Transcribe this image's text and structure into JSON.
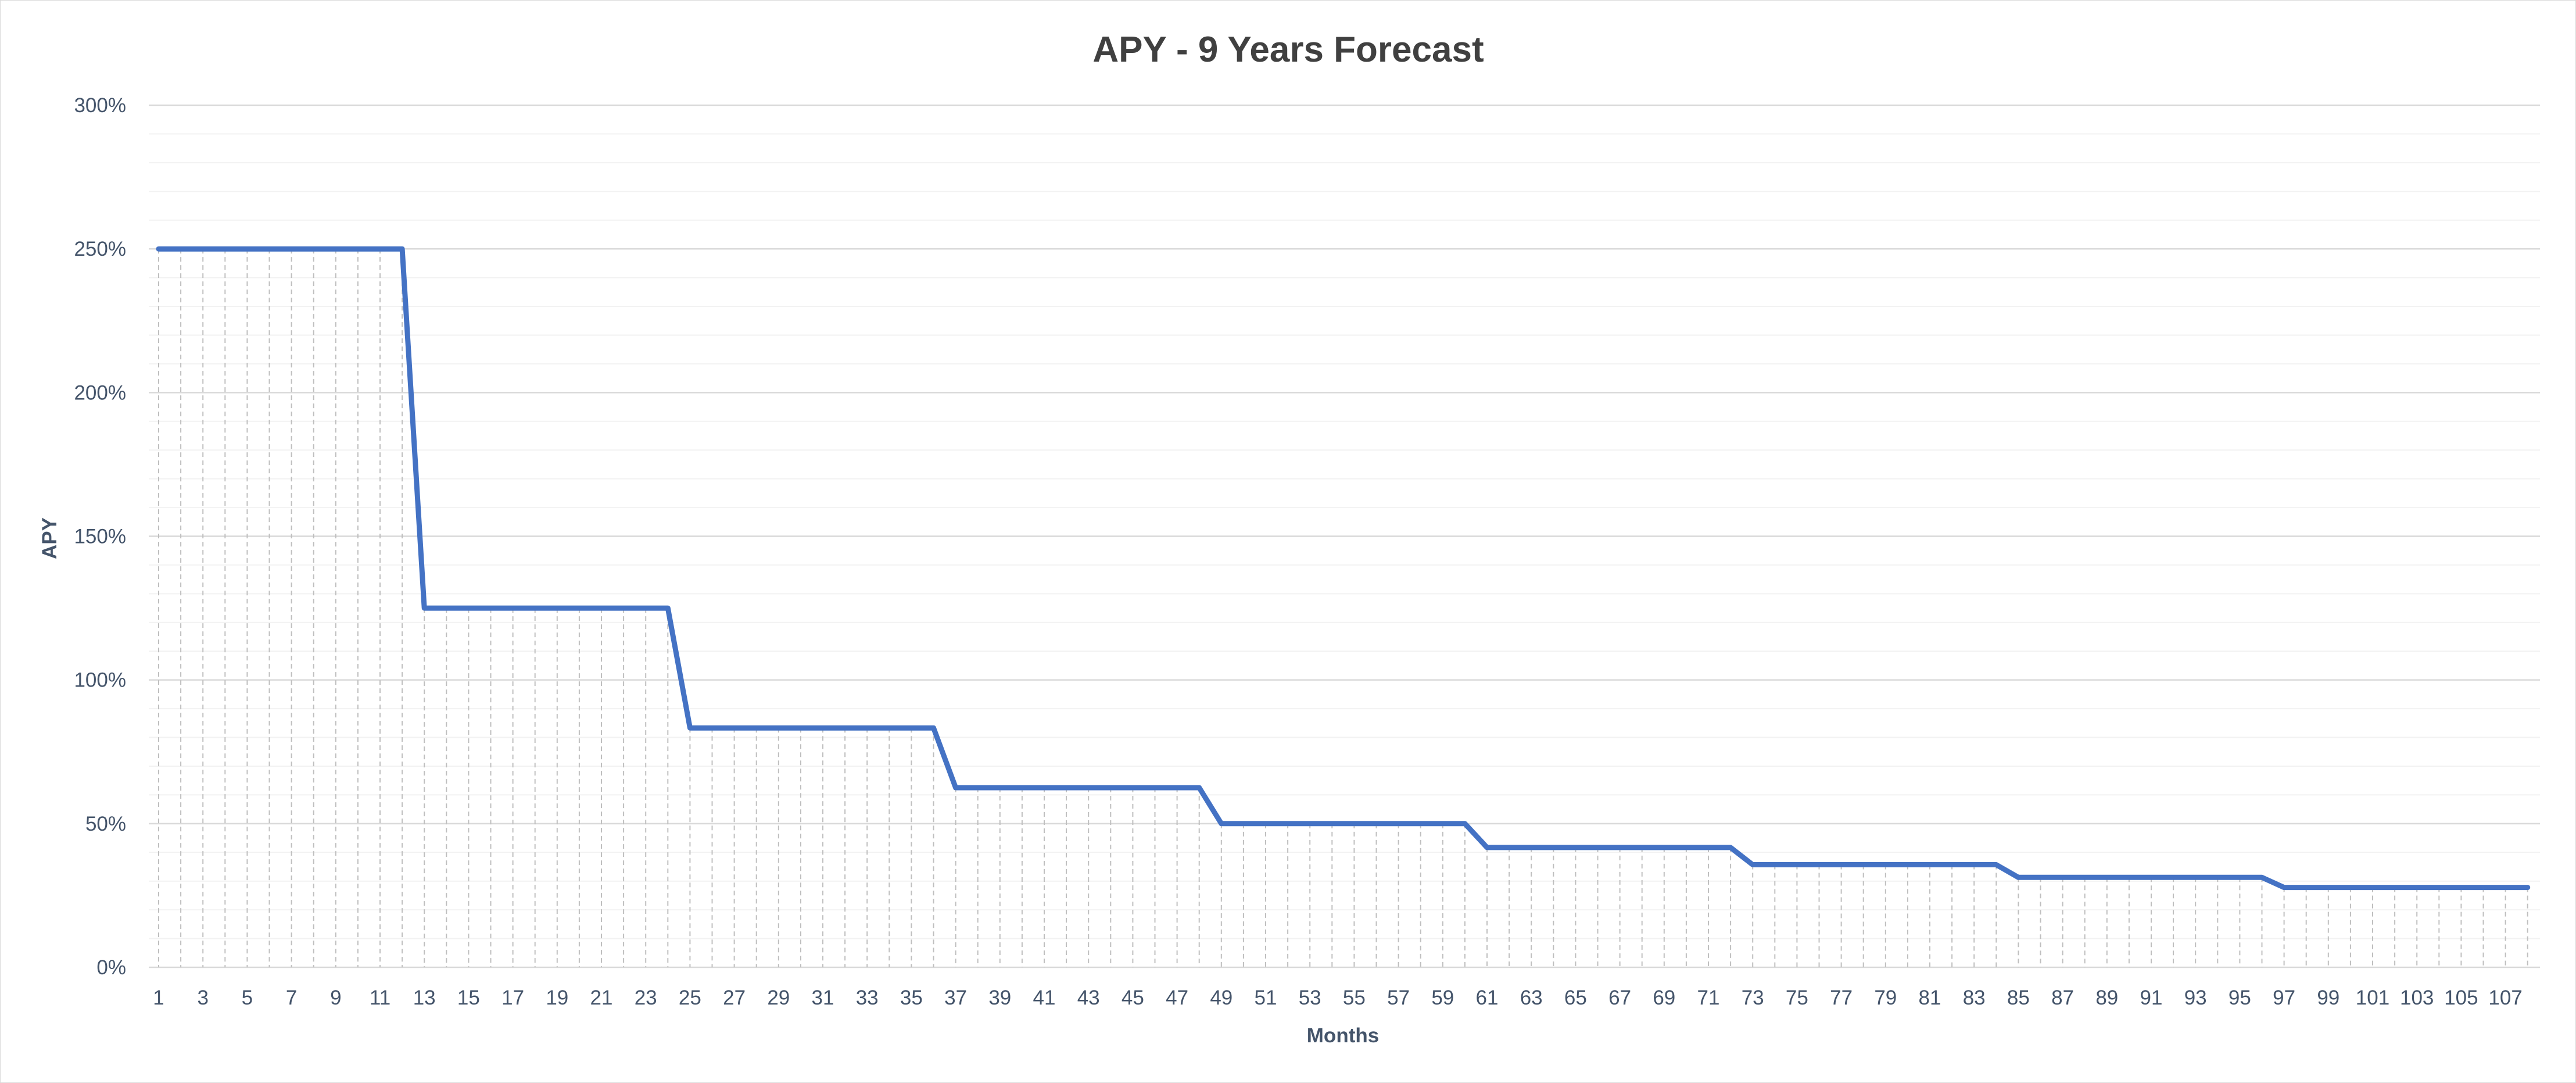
{
  "chart_data": {
    "type": "line",
    "title": "APY - 9 Years Forecast",
    "xlabel": "Months",
    "ylabel": "APY",
    "x": [
      1,
      2,
      3,
      4,
      5,
      6,
      7,
      8,
      9,
      10,
      11,
      12,
      13,
      14,
      15,
      16,
      17,
      18,
      19,
      20,
      21,
      22,
      23,
      24,
      25,
      26,
      27,
      28,
      29,
      30,
      31,
      32,
      33,
      34,
      35,
      36,
      37,
      38,
      39,
      40,
      41,
      42,
      43,
      44,
      45,
      46,
      47,
      48,
      49,
      50,
      51,
      52,
      53,
      54,
      55,
      56,
      57,
      58,
      59,
      60,
      61,
      62,
      63,
      64,
      65,
      66,
      67,
      68,
      69,
      70,
      71,
      72,
      73,
      74,
      75,
      76,
      77,
      78,
      79,
      80,
      81,
      82,
      83,
      84,
      85,
      86,
      87,
      88,
      89,
      90,
      91,
      92,
      93,
      94,
      95,
      96,
      97,
      98,
      99,
      100,
      101,
      102,
      103,
      104,
      105,
      106,
      107,
      108
    ],
    "x_tick_labels": [
      "1",
      "3",
      "5",
      "7",
      "9",
      "11",
      "13",
      "15",
      "17",
      "19",
      "21",
      "23",
      "25",
      "27",
      "29",
      "31",
      "33",
      "35",
      "37",
      "39",
      "41",
      "43",
      "45",
      "47",
      "49",
      "51",
      "53",
      "55",
      "57",
      "59",
      "61",
      "63",
      "65",
      "67",
      "69",
      "71",
      "73",
      "75",
      "77",
      "79",
      "81",
      "83",
      "85",
      "87",
      "89",
      "91",
      "93",
      "95",
      "97",
      "99",
      "101",
      "103",
      "105",
      "107"
    ],
    "series": [
      {
        "values": [
          250,
          250,
          250,
          250,
          250,
          250,
          250,
          250,
          250,
          250,
          250,
          250,
          125,
          125,
          125,
          125,
          125,
          125,
          125,
          125,
          125,
          125,
          125,
          125,
          83.3,
          83.3,
          83.3,
          83.3,
          83.3,
          83.3,
          83.3,
          83.3,
          83.3,
          83.3,
          83.3,
          83.3,
          62.5,
          62.5,
          62.5,
          62.5,
          62.5,
          62.5,
          62.5,
          62.5,
          62.5,
          62.5,
          62.5,
          62.5,
          50,
          50,
          50,
          50,
          50,
          50,
          50,
          50,
          50,
          50,
          50,
          50,
          41.7,
          41.7,
          41.7,
          41.7,
          41.7,
          41.7,
          41.7,
          41.7,
          41.7,
          41.7,
          41.7,
          41.7,
          35.7,
          35.7,
          35.7,
          35.7,
          35.7,
          35.7,
          35.7,
          35.7,
          35.7,
          35.7,
          35.7,
          35.7,
          31.3,
          31.3,
          31.3,
          31.3,
          31.3,
          31.3,
          31.3,
          31.3,
          31.3,
          31.3,
          31.3,
          31.3,
          27.8,
          27.8,
          27.8,
          27.8,
          27.8,
          27.8,
          27.8,
          27.8,
          27.8,
          27.8,
          27.8,
          27.8
        ]
      }
    ],
    "y_tick_labels": [
      "0%",
      "50%",
      "100%",
      "150%",
      "200%",
      "250%",
      "300%"
    ],
    "ylim": [
      0,
      300
    ],
    "y_major_step": 50,
    "y_minor_step": 10,
    "grid": true,
    "drop_lines": true,
    "colors": {
      "line": "#4472c4",
      "major_grid": "#d9d9d9",
      "minor_grid": "#f2f2f2",
      "drop_line": "#bfbfbf"
    }
  }
}
